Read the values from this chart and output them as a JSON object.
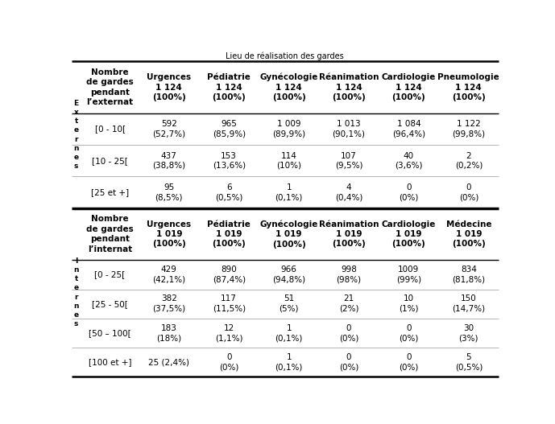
{
  "title": "Lieu de réalisation des gardes",
  "fig_width": 6.89,
  "fig_height": 5.27,
  "bg_color": "#ffffff",
  "section1_header_col0": "Nombre\nde gardes\npendant\nl’externat",
  "section1_columns": [
    "Urgences\n1 124\n(100%)",
    "Pédiatrie\n1 124\n(100%)",
    "Gynécologie\n1 124\n(100%)",
    "Réanimation\n1 124\n(100%)",
    "Cardiologie\n1 124\n(100%)",
    "Pneumologie\n1 124\n(100%)"
  ],
  "section1_row_labels": [
    "[0 - 10[",
    "[10 - 25[",
    "[25 et +]"
  ],
  "section1_data": [
    [
      "592\n(52,7%)",
      "965\n(85,9%)",
      "1 009\n(89,9%)",
      "1 013\n(90,1%)",
      "1 084\n(96,4%)",
      "1 122\n(99,8%)"
    ],
    [
      "437\n(38,8%)",
      "153\n(13,6%)",
      "114\n(10%)",
      "107\n(9,5%)",
      "40\n(3,6%)",
      "2\n(0,2%)"
    ],
    [
      "95\n(8,5%)",
      "6\n(0,5%)",
      "1\n(0,1%)",
      "4\n(0,4%)",
      "0\n(0%)",
      "0\n(0%)"
    ]
  ],
  "section2_header_col0": "Nombre\nde gardes\npendant\nl’internat",
  "section2_columns": [
    "Urgences\n1 019\n(100%)",
    "Pédiatrie\n1 019\n(100%)",
    "Gynécologie\n1 019\n(100%)",
    "Réanimation\n1 019\n(100%)",
    "Cardiologie\n1 019\n(100%)",
    "Médecine\n1 019\n(100%)"
  ],
  "section2_row_labels": [
    "[0 - 25[",
    "[25 - 50[",
    "[50 – 100[",
    "[100 et +]"
  ],
  "section2_data": [
    [
      "429\n(42,1%)",
      "890\n(87,4%)",
      "966\n(94,8%)",
      "998\n(98%)",
      "1009\n(99%)",
      "834\n(81,8%)"
    ],
    [
      "382\n(37,5%)",
      "117\n(11,5%)",
      "51\n(5%)",
      "21\n(2%)",
      "10\n(1%)",
      "150\n(14,7%)"
    ],
    [
      "183\n(18%)",
      "12\n(1,1%)",
      "1\n(0,1%)",
      "0\n(0%)",
      "0\n(0%)",
      "30\n(3%)"
    ],
    [
      "25 (2,4%)",
      "0\n(0%)",
      "1\n(0,1%)",
      "0\n(0%)",
      "0\n(0%)",
      "5\n(0,5%)"
    ]
  ],
  "externes_label": "E\nx\nt\ne\nr\nn\ne\ns",
  "internes_label": "I\nn\nt\ne\nr\nn\ne\ns"
}
